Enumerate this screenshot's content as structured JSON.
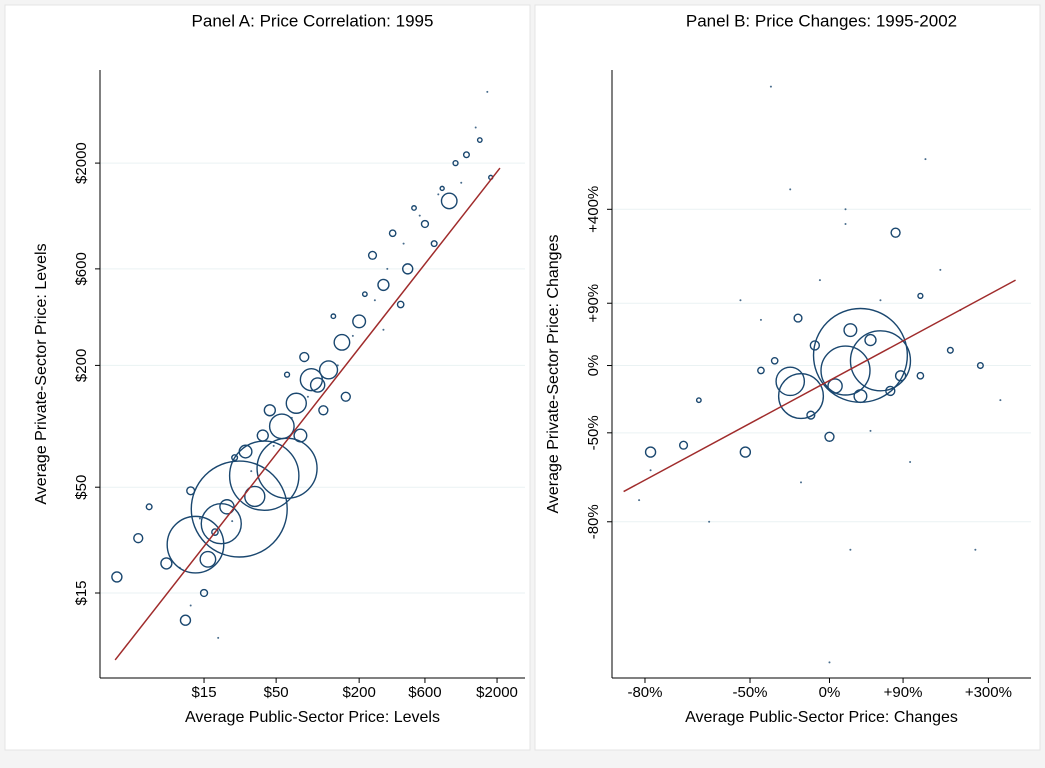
{
  "chart_data": [
    {
      "type": "scatter",
      "title": "Panel A: Price Correlation: 1995",
      "x_label": "Average Public-Sector Price: Levels",
      "y_label": "Average Private-Sector Price: Levels",
      "xscale": "log",
      "yscale": "log",
      "grid": true,
      "color": "#1a476f",
      "fit_color": "#a02c2c",
      "xlim": [
        2.64,
        3190
      ],
      "ylim": [
        5.7,
        5770
      ],
      "xticks": [
        {
          "value": 15,
          "label": "$15"
        },
        {
          "value": 50,
          "label": "$50"
        },
        {
          "value": 200,
          "label": "$200"
        },
        {
          "value": 600,
          "label": "$600"
        },
        {
          "value": 2000,
          "label": "$2000"
        }
      ],
      "yticks": [
        {
          "value": 15,
          "label": "$15"
        },
        {
          "value": 50,
          "label": "$50"
        },
        {
          "value": 200,
          "label": "$200"
        },
        {
          "value": 600,
          "label": "$600"
        },
        {
          "value": 2000,
          "label": "$2000"
        }
      ],
      "x": [
        27,
        41,
        13,
        60,
        20,
        55,
        70,
        90,
        120,
        150,
        200,
        300,
        450,
        900,
        1200,
        1500,
        5,
        3.5,
        12,
        11,
        15,
        30,
        45,
        80,
        100,
        250,
        350,
        600,
        700,
        1000,
        400,
        160,
        35,
        22,
        16,
        8,
        18,
        25,
        60,
        130,
        220,
        800,
        1800,
        75,
        110,
        500,
        40,
        6,
        10,
        14,
        24,
        33,
        48,
        65,
        85,
        140,
        180,
        260,
        320,
        420,
        550,
        750,
        1100,
        1400,
        1700,
        19,
        12,
        300
      ],
      "values": [
        39,
        57,
        26,
        62,
        33,
        100,
        130,
        170,
        190,
        260,
        330,
        500,
        600,
        1300,
        2200,
        2600,
        28,
        18,
        48,
        11,
        15,
        75,
        120,
        220,
        160,
        700,
        900,
        1000,
        800,
        2000,
        400,
        140,
        45,
        40,
        22,
        21,
        30,
        70,
        180,
        350,
        450,
        1500,
        1700,
        90,
        120,
        1200,
        90,
        40,
        20,
        35,
        34,
        60,
        80,
        110,
        140,
        200,
        280,
        420,
        600,
        800,
        1100,
        1400,
        1600,
        3000,
        4500,
        9,
        13,
        300
      ],
      "sizes": [
        2300,
        1200,
        800,
        900,
        400,
        150,
        100,
        120,
        80,
        60,
        40,
        30,
        25,
        60,
        8,
        5,
        20,
        25,
        15,
        25,
        12,
        40,
        30,
        20,
        50,
        15,
        10,
        12,
        8,
        6,
        10,
        20,
        100,
        50,
        60,
        30,
        10,
        8,
        6,
        5,
        5,
        4,
        4,
        40,
        20,
        5,
        30,
        8,
        1,
        1,
        1,
        1,
        1,
        1,
        1,
        1,
        1,
        1,
        1,
        1,
        1,
        1,
        1,
        1,
        1,
        1,
        1,
        1
      ],
      "fit_line": {
        "x": [
          3.4,
          2100
        ],
        "y": [
          7,
          1890
        ]
      }
    },
    {
      "type": "scatter",
      "title": "Panel B: Price Changes: 1995-2002",
      "x_label": "Average Public-Sector Price: Changes",
      "y_label": "Average Private-Sector Price: Changes",
      "xscale": "log-growth",
      "yscale": "log-growth",
      "grid": true,
      "color": "#1a476f",
      "fit_color": "#a02c2c",
      "xlim": [
        -85,
        480
      ],
      "ylim": [
        -96,
        2000
      ],
      "xticks": [
        {
          "value": -80,
          "label": "-80%"
        },
        {
          "value": -50,
          "label": "-50%"
        },
        {
          "value": 0,
          "label": "0%"
        },
        {
          "value": 90,
          "label": "+90%"
        },
        {
          "value": 300,
          "label": "+300%"
        }
      ],
      "yticks": [
        {
          "value": -80,
          "label": "-80%"
        },
        {
          "value": -50,
          "label": "-50%"
        },
        {
          "value": 0,
          "label": "0%"
        },
        {
          "value": 90,
          "label": "+90%"
        },
        {
          "value": 400,
          "label": "+400%"
        }
      ],
      "x": [
        31,
        56,
        -22,
        15,
        -29,
        -79,
        -52,
        -72,
        78,
        -24,
        0,
        -15,
        273,
        121,
        15,
        15,
        -40,
        -29,
        70,
        121,
        -45,
        -68,
        187,
        43,
        20,
        -12,
        5,
        31,
        86,
        -38,
        -79,
        -81,
        344,
        56,
        163,
        -8,
        -45,
        43,
        -22,
        102,
        20,
        -54,
        213,
        0,
        257,
        -65,
        131
      ],
      "values": [
        11,
        5,
        -27,
        -5,
        -15,
        -59,
        -59,
        -56,
        293,
        63,
        -52,
        -40,
        0,
        105,
        400,
        330,
        1670,
        514,
        -23,
        -10,
        -5,
        -30,
        17,
        30,
        44,
        23,
        -19,
        -27,
        -10,
        5,
        -66,
        -75,
        -30,
        96,
        168,
        141,
        60,
        -49,
        -70,
        -63,
        -85,
        96,
        77,
        -95.3,
        -85,
        -80,
        738
      ],
      "sizes": [
        2200,
        900,
        500,
        600,
        200,
        25,
        25,
        15,
        20,
        15,
        20,
        15,
        8,
        6,
        3,
        3,
        1,
        2,
        20,
        10,
        10,
        5,
        8,
        30,
        40,
        20,
        50,
        40,
        25,
        10,
        3,
        1,
        3,
        1,
        1,
        1,
        1,
        1,
        1,
        1,
        1,
        1,
        1,
        1,
        1,
        1,
        1
      ],
      "fit_line": {
        "x": [
          -83.4,
          407
        ],
        "y": [
          -72.7,
          141
        ]
      }
    }
  ]
}
